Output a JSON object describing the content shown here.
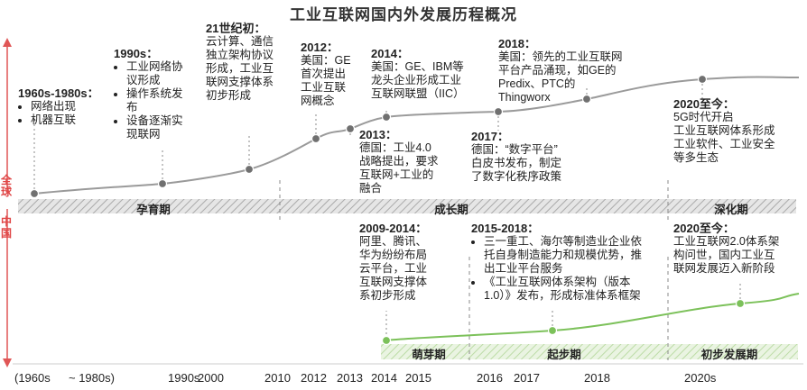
{
  "title": "工业互联网国内外发展历程概况",
  "side_labels": {
    "global": "全球",
    "china": "中国"
  },
  "phases_global": [
    "孕育期",
    "成长期",
    "深化期"
  ],
  "phases_china": [
    "萌芽期",
    "起步期",
    "初步发展期"
  ],
  "global_notes": [
    {
      "heading": "1960s-1980s：",
      "items": [
        "网络出现",
        "机器互联"
      ]
    },
    {
      "heading": "1990s：",
      "items": [
        "工业网络协议形成",
        "操作系统发布",
        "设备逐渐实现联网"
      ]
    },
    {
      "heading": "21世纪初：",
      "text": "云计算、通信\n独立架构协议\n形成，工业互\n联网支撑体系\n初步形成"
    },
    {
      "heading": "2012：",
      "text": "美国：GE\n首次提出\n工业互联\n网概念"
    },
    {
      "heading": "2013：",
      "text": "德国：工业4.0\n战略提出，要求\n互联网+工业的\n融合"
    },
    {
      "heading": "2014：",
      "text": "美国：GE、IBM等\n龙头企业形成工业\n互联网联盟（IIC）"
    },
    {
      "heading": "2017：",
      "text": "德国：“数字平台”\n白皮书发布，制定\n了数字化秩序政策"
    },
    {
      "heading": "2018：",
      "text": "美国：领先的工业互联网\n平台产品涌现，如GE的\nPredix、PTC的\nThingworx"
    },
    {
      "heading": "2020至今：",
      "text": "5G时代开启\n工业互联网体系形成\n工业软件、工业安全\n等多生态"
    }
  ],
  "china_notes": [
    {
      "heading": "2009-2014：",
      "text": "阿里、腾讯、\n华为纷纷布局\n云平台，工业\n互联网支撑体\n系初步形成"
    },
    {
      "heading": "2015-2018：",
      "items": [
        "三一重工、海尔等制造业企业依托自身制造能力和规模优势，推出工业平台服务",
        "《工业互联网体系架构（版本1.0）》发布，形成标准体系框架"
      ]
    },
    {
      "heading": "2020至今：",
      "text": "工业互联网2.0体系架\n构问世，国内工业互\n联网发展迈入新阶段"
    }
  ],
  "x_axis": [
    "(1960s",
    "~ 1980s)",
    "1990s",
    "2000",
    "2010",
    "2012",
    "2013",
    "2014",
    "2015",
    "2016",
    "2017",
    "2018",
    "2020s"
  ],
  "colors": {
    "accent_green": "#7cc15a",
    "axis_red": "#e05656",
    "marker_gray": "#707070",
    "band_hatch": "#b0b0b0"
  }
}
